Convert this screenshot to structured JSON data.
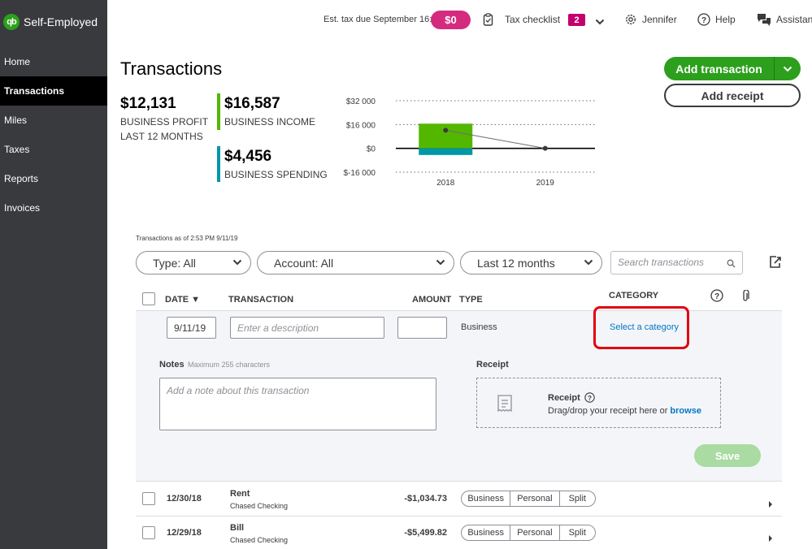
{
  "app": {
    "brand": "Self-Employed",
    "logo_text": "qb"
  },
  "sidebar": {
    "items": [
      {
        "label": "Home"
      },
      {
        "label": "Transactions",
        "active": true
      },
      {
        "label": "Miles"
      },
      {
        "label": "Taxes"
      },
      {
        "label": "Reports"
      },
      {
        "label": "Invoices"
      }
    ]
  },
  "header": {
    "tax_due_label": "Est. tax due September 16:",
    "tax_due_value": "$0",
    "tax_checklist_label": "Tax checklist",
    "tax_checklist_count": "2",
    "user_name": "Jennifer",
    "help_label": "Help",
    "assistant_label": "Assistant"
  },
  "page": {
    "title": "Transactions"
  },
  "summary": {
    "profit_value": "$12,131",
    "profit_label": "BUSINESS PROFIT",
    "profit_period": "LAST 12 MONTHS",
    "income_value": "$16,587",
    "income_label": "BUSINESS INCOME",
    "spending_value": "$4,456",
    "spending_label": "BUSINESS SPENDING"
  },
  "colors": {
    "income": "#53b700",
    "spending": "#0097a7",
    "brand": "#2ca01c",
    "highlight": "#e3000f"
  },
  "chart_data": {
    "type": "bar",
    "categories": [
      "2018",
      "2019"
    ],
    "series": [
      {
        "values": [
          16587,
          0
        ]
      },
      {
        "values": [
          -4456,
          0
        ]
      }
    ],
    "line": {
      "values": [
        12131,
        0
      ]
    },
    "ytick_labels": [
      "$32 000",
      "$16 000",
      "$0",
      "$-16 000"
    ],
    "yticks": [
      32000,
      16000,
      0,
      -16000
    ],
    "ylim": [
      -16000,
      32000
    ]
  },
  "actions": {
    "add_transaction": "Add transaction",
    "add_receipt": "Add receipt"
  },
  "transactions_asof": "Transactions as of 2:53 PM 9/11/19",
  "filters": {
    "type": "Type: All",
    "account": "Account: All",
    "period": "Last 12 months",
    "search_placeholder": "Search transactions"
  },
  "table": {
    "headers": {
      "date": "DATE ▼",
      "transaction": "TRANSACTION",
      "amount": "AMOUNT",
      "type": "TYPE",
      "category": "CATEGORY"
    }
  },
  "new_tx": {
    "date": "9/11/19",
    "description_placeholder": "Enter a description",
    "amount": "",
    "type": "Business",
    "category_link": "Select a category",
    "notes_label": "Notes",
    "notes_hint": "Maximum 255 characters",
    "notes_placeholder": "Add a note about this transaction",
    "receipt_label": "Receipt",
    "receipt_title": "Receipt",
    "receipt_drop_text": "Drag/drop your receipt here or",
    "receipt_browse": "browse",
    "save_label": "Save"
  },
  "rows": [
    {
      "date": "12/30/18",
      "name": "Rent",
      "account": "Chased Checking",
      "amount": "-$1,034.73",
      "seg": [
        "Business",
        "Personal",
        "Split"
      ]
    },
    {
      "date": "12/29/18",
      "name": "Bill",
      "account": "Chased Checking",
      "amount": "-$5,499.82",
      "seg": [
        "Business",
        "Personal",
        "Split"
      ]
    }
  ]
}
